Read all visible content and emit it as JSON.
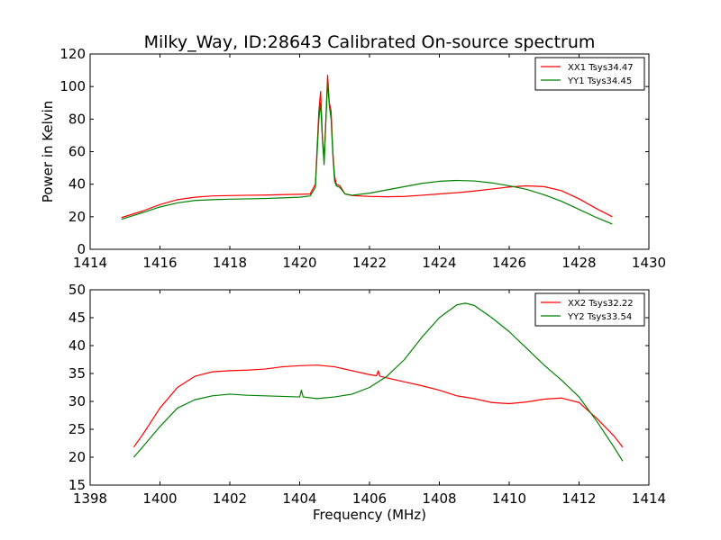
{
  "title": "Milky_Way, ID:28643 Calibrated On-source spectrum",
  "colors": {
    "xx": "#ff0000",
    "yy": "#008000",
    "axis": "#000000",
    "background": "#ffffff"
  },
  "chart_data": [
    {
      "type": "line",
      "title": "Milky_Way, ID:28643 Calibrated On-source spectrum",
      "xlabel": "",
      "ylabel": "Power in Kelvin",
      "xlim": [
        1414,
        1430
      ],
      "ylim": [
        0,
        120
      ],
      "xticks": [
        "1414",
        "1416",
        "1418",
        "1420",
        "1422",
        "1424",
        "1426",
        "1428",
        "1430"
      ],
      "yticks": [
        "0",
        "20",
        "40",
        "60",
        "80",
        "100",
        "120"
      ],
      "grid": false,
      "legend": "top-right",
      "series": [
        {
          "name": "XX1 Tsys34.47",
          "color": "#ff0000",
          "points": [
            [
              1414.9,
              19.5
            ],
            [
              1415.5,
              23.5
            ],
            [
              1416.0,
              27.5
            ],
            [
              1416.5,
              30.5
            ],
            [
              1417.0,
              32.0
            ],
            [
              1417.5,
              32.8
            ],
            [
              1418.0,
              33.0
            ],
            [
              1418.5,
              33.2
            ],
            [
              1419.0,
              33.3
            ],
            [
              1419.5,
              33.6
            ],
            [
              1420.0,
              33.8
            ],
            [
              1420.3,
              34.0
            ],
            [
              1420.45,
              40
            ],
            [
              1420.55,
              85
            ],
            [
              1420.6,
              97
            ],
            [
              1420.65,
              70
            ],
            [
              1420.7,
              55
            ],
            [
              1420.75,
              80
            ],
            [
              1420.8,
              107
            ],
            [
              1420.85,
              90
            ],
            [
              1420.9,
              85
            ],
            [
              1420.95,
              60
            ],
            [
              1421.0,
              45
            ],
            [
              1421.05,
              40
            ],
            [
              1421.15,
              39
            ],
            [
              1421.3,
              34
            ],
            [
              1421.5,
              33.0
            ],
            [
              1422.0,
              32.5
            ],
            [
              1422.5,
              32.3
            ],
            [
              1423.0,
              32.5
            ],
            [
              1423.5,
              33.2
            ],
            [
              1424.0,
              34.0
            ],
            [
              1424.5,
              34.8
            ],
            [
              1425.0,
              35.8
            ],
            [
              1425.5,
              37.0
            ],
            [
              1426.0,
              38.3
            ],
            [
              1426.5,
              39.0
            ],
            [
              1427.0,
              38.5
            ],
            [
              1427.5,
              36.0
            ],
            [
              1428.0,
              31.0
            ],
            [
              1428.5,
              25.0
            ],
            [
              1428.95,
              20.0
            ]
          ]
        },
        {
          "name": "YY1 Tsys34.45",
          "color": "#008000",
          "points": [
            [
              1414.9,
              18.5
            ],
            [
              1415.5,
              22.5
            ],
            [
              1416.0,
              26.0
            ],
            [
              1416.5,
              28.5
            ],
            [
              1417.0,
              30.0
            ],
            [
              1417.5,
              30.5
            ],
            [
              1418.0,
              30.8
            ],
            [
              1418.5,
              31.0
            ],
            [
              1419.0,
              31.2
            ],
            [
              1419.5,
              31.6
            ],
            [
              1420.0,
              32.0
            ],
            [
              1420.3,
              32.8
            ],
            [
              1420.45,
              38
            ],
            [
              1420.55,
              80
            ],
            [
              1420.6,
              90
            ],
            [
              1420.65,
              68
            ],
            [
              1420.7,
              52
            ],
            [
              1420.75,
              78
            ],
            [
              1420.8,
              103
            ],
            [
              1420.85,
              88
            ],
            [
              1420.9,
              80
            ],
            [
              1420.95,
              58
            ],
            [
              1421.0,
              42
            ],
            [
              1421.05,
              39
            ],
            [
              1421.15,
              38
            ],
            [
              1421.3,
              34
            ],
            [
              1421.5,
              33.2
            ],
            [
              1422.0,
              34.5
            ],
            [
              1422.5,
              36.5
            ],
            [
              1423.0,
              38.5
            ],
            [
              1423.5,
              40.5
            ],
            [
              1424.0,
              41.8
            ],
            [
              1424.5,
              42.3
            ],
            [
              1425.0,
              42.0
            ],
            [
              1425.5,
              40.8
            ],
            [
              1426.0,
              39.0
            ],
            [
              1426.5,
              36.8
            ],
            [
              1427.0,
              33.5
            ],
            [
              1427.5,
              29.5
            ],
            [
              1428.0,
              24.5
            ],
            [
              1428.5,
              19.5
            ],
            [
              1428.95,
              15.5
            ]
          ]
        }
      ]
    },
    {
      "type": "line",
      "title": "",
      "xlabel": "Frequency (MHz)",
      "ylabel": "",
      "xlim": [
        1398,
        1414
      ],
      "ylim": [
        15,
        50
      ],
      "xticks": [
        "1398",
        "1400",
        "1402",
        "1404",
        "1406",
        "1408",
        "1410",
        "1412",
        "1414"
      ],
      "yticks": [
        "15",
        "20",
        "25",
        "30",
        "35",
        "40",
        "45",
        "50"
      ],
      "grid": false,
      "legend": "top-right",
      "series": [
        {
          "name": "XX2 Tsys32.22",
          "color": "#ff0000",
          "points": [
            [
              1399.25,
              21.8
            ],
            [
              1399.5,
              24.0
            ],
            [
              1400.0,
              28.8
            ],
            [
              1400.5,
              32.5
            ],
            [
              1401.0,
              34.5
            ],
            [
              1401.5,
              35.3
            ],
            [
              1402.0,
              35.5
            ],
            [
              1402.5,
              35.6
            ],
            [
              1403.0,
              35.8
            ],
            [
              1403.5,
              36.2
            ],
            [
              1404.0,
              36.4
            ],
            [
              1404.5,
              36.5
            ],
            [
              1405.0,
              36.2
            ],
            [
              1405.5,
              35.5
            ],
            [
              1406.0,
              34.8
            ],
            [
              1406.2,
              34.6
            ],
            [
              1406.25,
              35.5
            ],
            [
              1406.3,
              34.5
            ],
            [
              1406.5,
              34.2
            ],
            [
              1407.0,
              33.5
            ],
            [
              1407.5,
              32.8
            ],
            [
              1408.0,
              32.0
            ],
            [
              1408.5,
              31.0
            ],
            [
              1409.0,
              30.5
            ],
            [
              1409.5,
              29.8
            ],
            [
              1410.0,
              29.6
            ],
            [
              1410.5,
              29.9
            ],
            [
              1411.0,
              30.4
            ],
            [
              1411.5,
              30.6
            ],
            [
              1412.0,
              29.8
            ],
            [
              1412.5,
              27.0
            ],
            [
              1413.0,
              23.8
            ],
            [
              1413.25,
              21.8
            ]
          ]
        },
        {
          "name": "YY2 Tsys33.54",
          "color": "#008000",
          "points": [
            [
              1399.25,
              20.0
            ],
            [
              1399.5,
              21.8
            ],
            [
              1400.0,
              25.5
            ],
            [
              1400.5,
              28.8
            ],
            [
              1401.0,
              30.3
            ],
            [
              1401.5,
              31.0
            ],
            [
              1402.0,
              31.3
            ],
            [
              1402.5,
              31.1
            ],
            [
              1403.0,
              31.0
            ],
            [
              1403.5,
              30.9
            ],
            [
              1404.0,
              30.8
            ],
            [
              1404.05,
              32.0
            ],
            [
              1404.1,
              30.8
            ],
            [
              1404.5,
              30.5
            ],
            [
              1405.0,
              30.8
            ],
            [
              1405.5,
              31.3
            ],
            [
              1406.0,
              32.5
            ],
            [
              1406.5,
              34.5
            ],
            [
              1407.0,
              37.5
            ],
            [
              1407.5,
              41.5
            ],
            [
              1408.0,
              45.0
            ],
            [
              1408.5,
              47.3
            ],
            [
              1408.75,
              47.6
            ],
            [
              1409.0,
              47.2
            ],
            [
              1409.5,
              45.0
            ],
            [
              1410.0,
              42.5
            ],
            [
              1410.5,
              39.5
            ],
            [
              1411.0,
              36.5
            ],
            [
              1411.5,
              33.8
            ],
            [
              1412.0,
              30.8
            ],
            [
              1412.5,
              26.5
            ],
            [
              1413.0,
              21.8
            ],
            [
              1413.25,
              19.3
            ]
          ]
        }
      ]
    }
  ]
}
